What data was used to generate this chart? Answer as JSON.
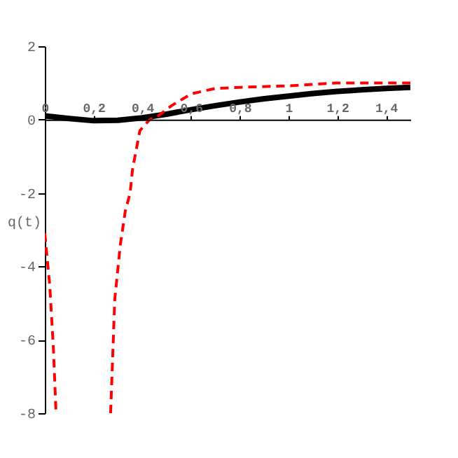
{
  "chart_data": {
    "type": "line",
    "ylabel": "q(t)",
    "xlim": [
      0,
      1.5
    ],
    "ylim": [
      -8,
      2
    ],
    "xticks": [
      0,
      {
        "value": 0.2,
        "label": "0,2"
      },
      {
        "value": 0.4,
        "label": "0,4"
      },
      {
        "value": 0.6,
        "label": "0,6"
      },
      {
        "value": 0.8,
        "label": "0,8"
      },
      1,
      {
        "value": 1.2,
        "label": "1,2"
      },
      {
        "value": 1.4,
        "label": "1,4"
      }
    ],
    "yticks": [
      -8,
      -6,
      -4,
      -2,
      0,
      2
    ],
    "grid": false,
    "series": [
      {
        "color": "#000000",
        "line_style": "solid",
        "x": [
          0,
          0.1,
          0.2,
          0.3,
          0.4,
          0.5,
          0.6,
          0.7,
          0.8,
          0.9,
          1.0,
          1.1,
          1.2,
          1.3,
          1.4,
          1.5
        ],
        "values": [
          0.1,
          0.03,
          -0.03,
          -0.02,
          0.05,
          0.15,
          0.27,
          0.38,
          0.48,
          0.57,
          0.64,
          0.71,
          0.77,
          0.81,
          0.85,
          0.88
        ]
      },
      {
        "color": "#ff0000",
        "line_style": "dashed",
        "x": [
          0,
          0.02,
          0.035,
          0.046
        ],
        "values": [
          -3.1,
          -4.5,
          -6.2,
          -8
        ]
      },
      {
        "color": "#ff0000",
        "line_style": "dashed",
        "x": [
          0.27,
          0.287,
          0.31,
          0.33,
          0.35,
          0.36,
          0.39,
          0.43,
          0.465,
          0.52,
          0.6,
          0.7,
          0.8,
          1.0,
          1.2,
          1.5
        ],
        "values": [
          -8,
          -4.9,
          -3.4,
          -2.5,
          -2,
          -1.35,
          -0.3,
          0.0,
          0.1,
          0.38,
          0.7,
          0.85,
          0.88,
          0.92,
          1.0,
          1.0
        ]
      }
    ]
  }
}
